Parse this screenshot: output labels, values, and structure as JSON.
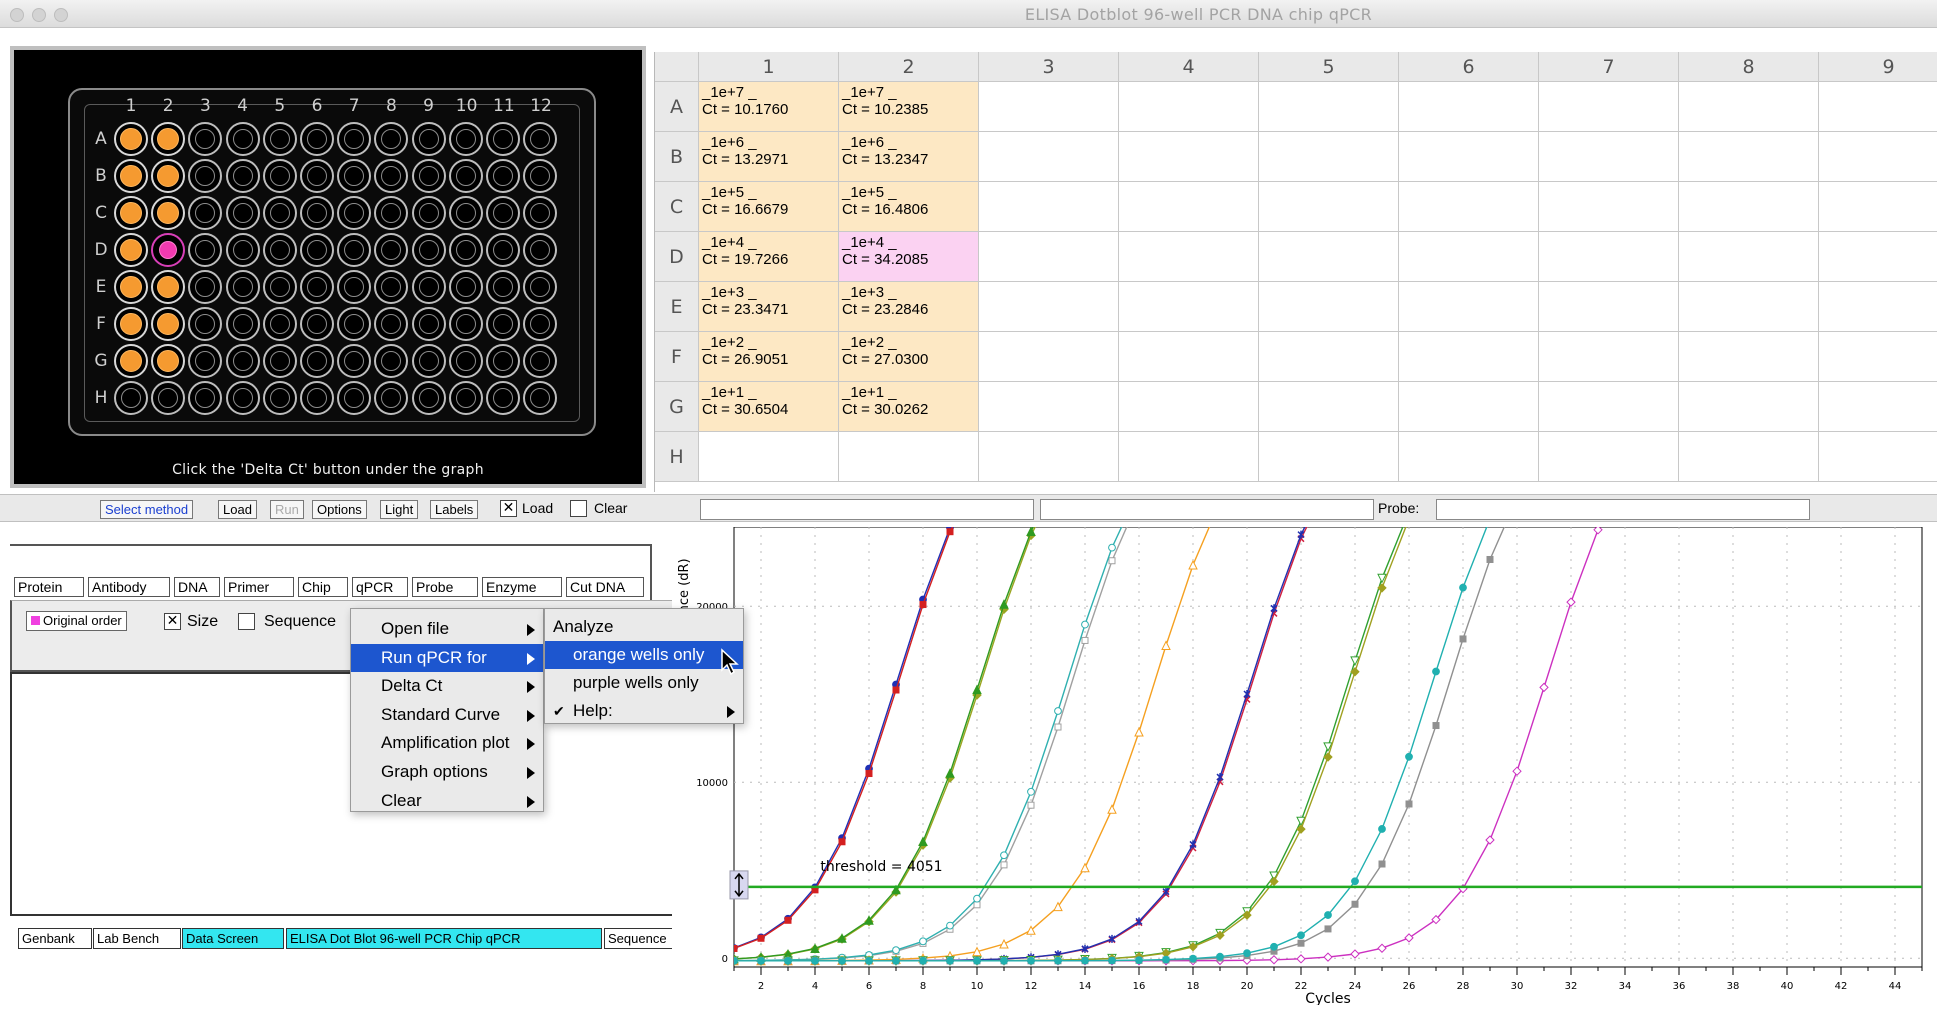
{
  "window": {
    "title": "ELISA   Dotblot   96-well PCR   DNA chip   qPCR"
  },
  "plate": {
    "column_labels": [
      "1",
      "2",
      "3",
      "4",
      "5",
      "6",
      "7",
      "8",
      "9",
      "10",
      "11",
      "12"
    ],
    "row_labels": [
      "A",
      "B",
      "C",
      "D",
      "E",
      "F",
      "G",
      "H"
    ],
    "caption": "Click the 'Delta Ct' button under the graph",
    "orange_wells": [
      "A1",
      "A2",
      "B1",
      "B2",
      "C1",
      "C2",
      "D1",
      "E1",
      "E2",
      "F1",
      "F2",
      "G1",
      "G2"
    ],
    "purple_wells": [
      "D2"
    ],
    "colors": {
      "orange": "#f59a30",
      "purple": "#f13ab0"
    }
  },
  "grid": {
    "column_headers": [
      "1",
      "2",
      "3",
      "4",
      "5",
      "6",
      "7",
      "8",
      "9"
    ],
    "row_headers": [
      "A",
      "B",
      "C",
      "D",
      "E",
      "F",
      "G",
      "H"
    ],
    "cells": {
      "A1": "_1e+7 _\nCt = 10.1760",
      "A2": "_1e+7 _\nCt = 10.2385",
      "B1": "_1e+6 _\nCt = 13.2971",
      "B2": "_1e+6 _\nCt = 13.2347",
      "C1": "_1e+5 _\nCt = 16.6679",
      "C2": "_1e+5 _\nCt = 16.4806",
      "D1": "_1e+4 _\nCt = 19.7266",
      "D2": "_1e+4 _\nCt = 34.2085",
      "E1": "_1e+3 _\nCt = 23.3471",
      "E2": "_1e+3 _\nCt = 23.2846",
      "F1": "_1e+2 _\nCt = 26.9051",
      "F2": "_1e+2 _\nCt = 27.0300",
      "G1": "_1e+1 _\nCt = 30.6504",
      "G2": "_1e+1 _\nCt = 30.0262"
    },
    "purple_cells": [
      "D2"
    ]
  },
  "toolbar": {
    "select_method": "Select method",
    "load": "Load",
    "run": "Run",
    "options": "Options",
    "light": "Light",
    "labels": "Labels",
    "load_check_label": "Load",
    "clear_check_label": "Clear",
    "probe_label": "Probe:"
  },
  "tool_tabs": [
    "Protein",
    "Antibody",
    "DNA",
    "Primer",
    "Chip",
    "qPCR",
    "Probe",
    "Enzyme",
    "Cut DNA"
  ],
  "sort": {
    "original_order": "Original order",
    "size": "Size",
    "sequence": "Sequence"
  },
  "bottom_tabs": [
    "Genbank",
    "Lab Bench",
    "Data Screen",
    "ELISA  Dot Blot  96-well PCR  Chip  qPCR",
    "Sequence"
  ],
  "menu": {
    "items": [
      "Open file",
      "Run qPCR for",
      "Delta Ct",
      "Standard Curve",
      "Amplification plot",
      "Graph options",
      "Clear"
    ],
    "selected": "Run qPCR for",
    "header": "Analyze",
    "sub_items": [
      "orange wells only",
      "purple wells only",
      "Help:"
    ],
    "sub_selected": "orange wells only",
    "help_check": "✔"
  },
  "graph": {
    "threshold_label": "threshold = 4051",
    "xlabel": "Cycles",
    "ylabel": "Fluorescence (dR)",
    "y_ticks": [
      "0",
      "10000",
      "20000"
    ],
    "x_ticks": [
      "2",
      "4",
      "6",
      "8",
      "10",
      "12",
      "14",
      "16",
      "18",
      "20",
      "22",
      "24",
      "26",
      "28",
      "30",
      "32",
      "34",
      "36",
      "38",
      "40",
      "42",
      "44"
    ]
  },
  "chart_data": {
    "type": "line",
    "x_range": [
      1,
      45
    ],
    "y_range": [
      -500,
      24500
    ],
    "threshold": 4051,
    "threshold_color": "#22aa22",
    "x_values": [
      1,
      2,
      3,
      4,
      5,
      6,
      7,
      8,
      9,
      10,
      11,
      12,
      13,
      14,
      15,
      16,
      17,
      18,
      19,
      20,
      21,
      22,
      23,
      24,
      25,
      26,
      27,
      28,
      29,
      30,
      31,
      32,
      33,
      34,
      35,
      36,
      37,
      38,
      39,
      40
    ],
    "series": [
      {
        "color": "#1f2fb5",
        "marker": "dot",
        "ct": 10.176
      },
      {
        "color": "#d42020",
        "marker": "square",
        "ct": 10.2385
      },
      {
        "color": "#9aa520",
        "marker": "diamond",
        "ct": 13.2971
      },
      {
        "color": "#2f9a20",
        "marker": "triangle",
        "ct": 13.2347
      },
      {
        "color": "#a0a0a0",
        "marker": "square-open",
        "ct": 16.6679
      },
      {
        "color": "#2fb0b0",
        "marker": "circle-open",
        "ct": 16.4806
      },
      {
        "color": "#f5a020",
        "marker": "triangle-open",
        "ct": 19.7266
      },
      {
        "color": "#cc30c0",
        "marker": "diamond-open",
        "ct": 34.2085
      },
      {
        "color": "#d02040",
        "marker": "x",
        "ct": 23.3471
      },
      {
        "color": "#2030b0",
        "marker": "star",
        "ct": 23.2846
      },
      {
        "color": "#30a030",
        "marker": "triangle-down",
        "ct": 26.9051
      },
      {
        "color": "#a0a020",
        "marker": "diamond",
        "ct": 27.03
      },
      {
        "color": "#909090",
        "marker": "square",
        "ct": 30.6504
      },
      {
        "color": "#20b0b0",
        "marker": "dot",
        "ct": 30.0262
      }
    ]
  }
}
